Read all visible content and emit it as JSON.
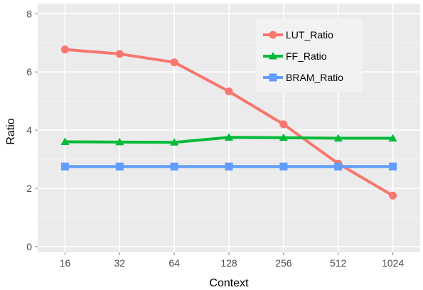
{
  "chart_data": {
    "type": "line",
    "x": [
      "16",
      "32",
      "64",
      "128",
      "256",
      "512",
      "1024"
    ],
    "series": [
      {
        "name": "LUT_Ratio",
        "values": [
          6.77,
          6.62,
          6.33,
          5.33,
          4.2,
          2.85,
          1.75
        ],
        "color": "#F8766D",
        "marker": "circle"
      },
      {
        "name": "FF_Ratio",
        "values": [
          3.6,
          3.59,
          3.58,
          3.75,
          3.74,
          3.72,
          3.72
        ],
        "color": "#00BA38",
        "marker": "triangle"
      },
      {
        "name": "BRAM_Ratio",
        "values": [
          2.75,
          2.75,
          2.75,
          2.75,
          2.75,
          2.75,
          2.75
        ],
        "color": "#619CFF",
        "marker": "square"
      }
    ],
    "yticks": [
      "0",
      "2",
      "4",
      "6",
      "8"
    ],
    "xlabel": "Context",
    "ylabel": "Ratio",
    "ylim": [
      -0.2,
      8.35
    ],
    "grid": true,
    "legend_position": "top-right",
    "panel_background": "#EBEBEB",
    "grid_color": "#FFFFFF"
  }
}
